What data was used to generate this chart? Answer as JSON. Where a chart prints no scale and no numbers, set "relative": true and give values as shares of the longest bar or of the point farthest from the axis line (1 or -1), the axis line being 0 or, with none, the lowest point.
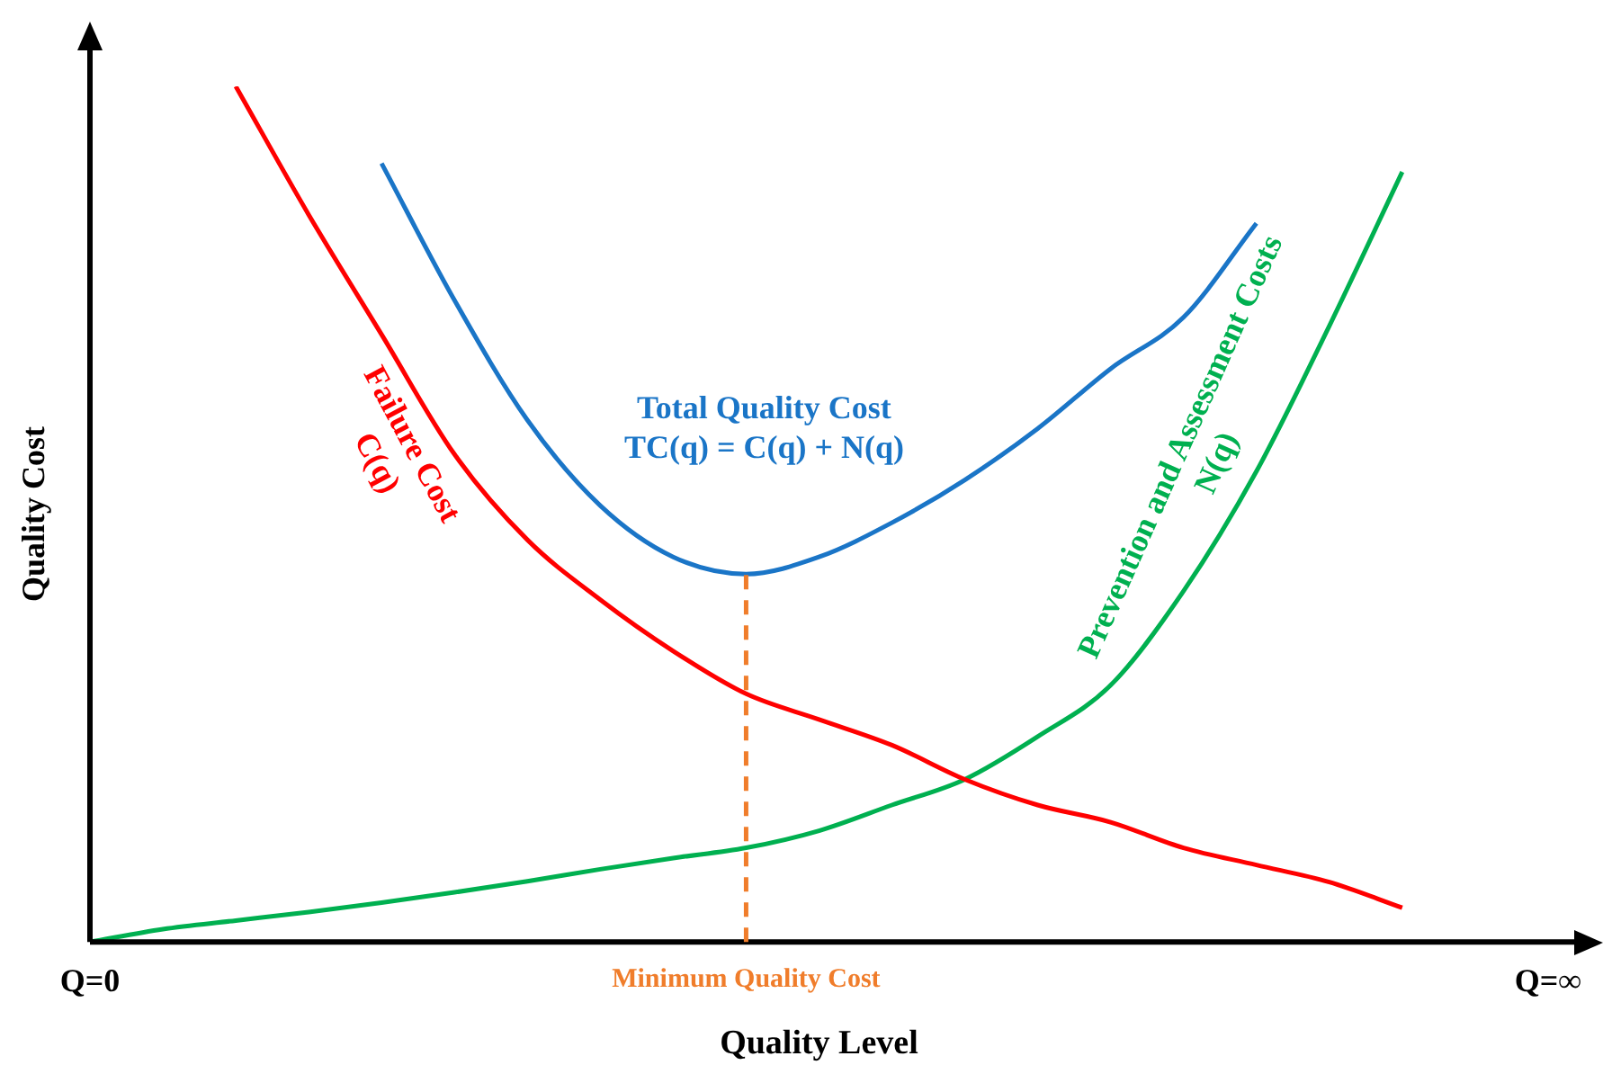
{
  "chart_data": {
    "type": "line",
    "relative": true,
    "xlabel": "Quality Level",
    "ylabel": "Quality Cost",
    "grid": false,
    "legend": false,
    "marker": "none",
    "line_style": "solid",
    "categories": [
      "Q=0",
      null,
      null,
      null,
      null,
      null,
      null,
      null,
      null,
      "Minimum Quality Cost",
      null,
      null,
      null,
      null,
      null,
      null,
      null,
      null,
      null,
      null,
      "Q=∞"
    ],
    "ref_lines": [
      {
        "axis": "x",
        "value": "Minimum Quality Cost",
        "color": "#f07d2b",
        "line_style": "dashed"
      }
    ],
    "series": [
      {
        "name": "Failure Cost\nC(q)",
        "color": "#ff0000",
        "values": [
          null,
          null,
          1,
          0.85,
          0.71,
          0.57,
          0.47,
          0.4,
          0.34,
          0.29,
          0.26,
          0.23,
          0.19,
          0.16,
          0.14,
          0.11,
          0.09,
          0.07,
          0.04,
          null,
          null
        ]
      },
      {
        "name": "Total Quality Cost\nTC(q) = C(q) + N(q)",
        "color": "#1a75c7",
        "values": [
          null,
          null,
          null,
          null,
          0.91,
          0.75,
          0.61,
          0.51,
          0.45,
          0.43,
          0.45,
          0.49,
          0.54,
          0.6,
          0.67,
          0.73,
          0.84,
          null,
          null,
          null,
          null
        ]
      },
      {
        "name": "Prevention and Assessment Costs\nN(q)",
        "color": "#00b050",
        "values": [
          0,
          0.015,
          0.025,
          0.035,
          0.046,
          0.058,
          0.071,
          0.085,
          0.098,
          0.11,
          0.13,
          0.16,
          0.19,
          0.24,
          0.3,
          0.41,
          0.55,
          0.72,
          0.9,
          null,
          null
        ]
      }
    ]
  }
}
